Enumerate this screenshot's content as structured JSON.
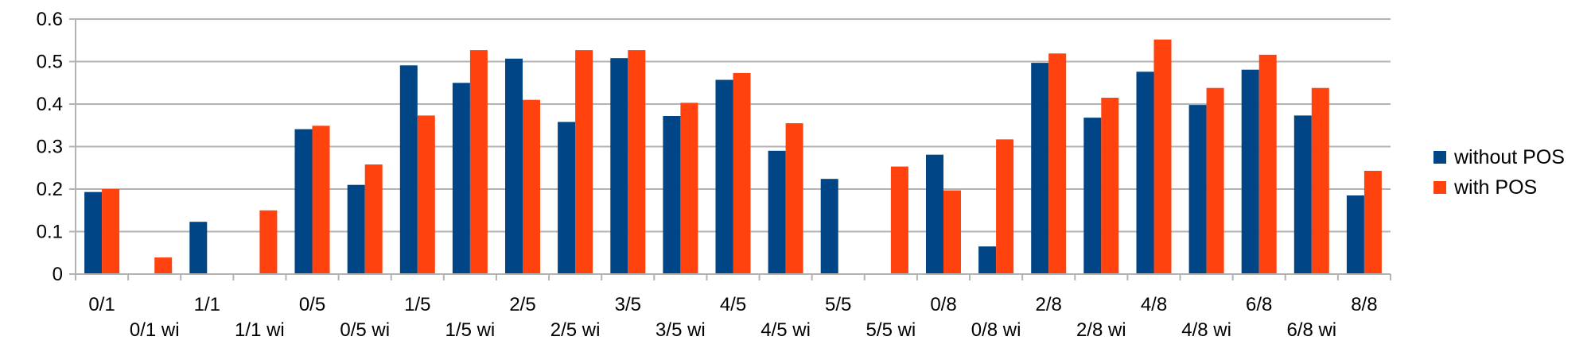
{
  "colors": {
    "series1": "#004586",
    "series2": "#ff420e",
    "grid": "#b3b3b3",
    "axis": "#b3b3b3",
    "background": "#ffffff"
  },
  "chart_data": {
    "type": "bar",
    "title": "",
    "xlabel": "",
    "ylabel": "",
    "ylim": [
      0,
      0.6
    ],
    "yticks": [
      0,
      0.1,
      0.2,
      0.3,
      0.4,
      0.5,
      0.6
    ],
    "ytick_labels": [
      "0",
      "0.1",
      "0.2",
      "0.3",
      "0.4",
      "0.5",
      "0.6"
    ],
    "grid": true,
    "legend_position": "right",
    "categories": [
      "0/1",
      "0/1 wi",
      "1/1",
      "1/1 wi",
      "0/5",
      "0/5 wi",
      "1/5",
      "1/5 wi",
      "2/5",
      "2/5 wi",
      "3/5",
      "3/5 wi",
      "4/5",
      "4/5 wi",
      "5/5",
      "5/5 wi",
      "0/8",
      "0/8 wi",
      "2/8",
      "2/8 wi",
      "4/8",
      "4/8 wi",
      "6/8",
      "6/8 wi",
      "8/8"
    ],
    "series": [
      {
        "name": "without POS",
        "values": [
          0.193,
          0,
          0.123,
          0,
          0.341,
          0.21,
          0.491,
          0.45,
          0.507,
          0.358,
          0.508,
          0.372,
          0.457,
          0.29,
          0.224,
          0,
          0.281,
          0.065,
          0.497,
          0.368,
          0.476,
          0.398,
          0.481,
          0.373,
          0.185
        ]
      },
      {
        "name": "with POS",
        "values": [
          0.2,
          0.039,
          0,
          0.15,
          0.349,
          0.258,
          0.373,
          0.527,
          0.41,
          0.527,
          0.527,
          0.403,
          0.473,
          0.355,
          0,
          0.253,
          0.197,
          0.317,
          0.519,
          0.415,
          0.552,
          0.438,
          0.516,
          0.438,
          0.243
        ]
      }
    ]
  }
}
